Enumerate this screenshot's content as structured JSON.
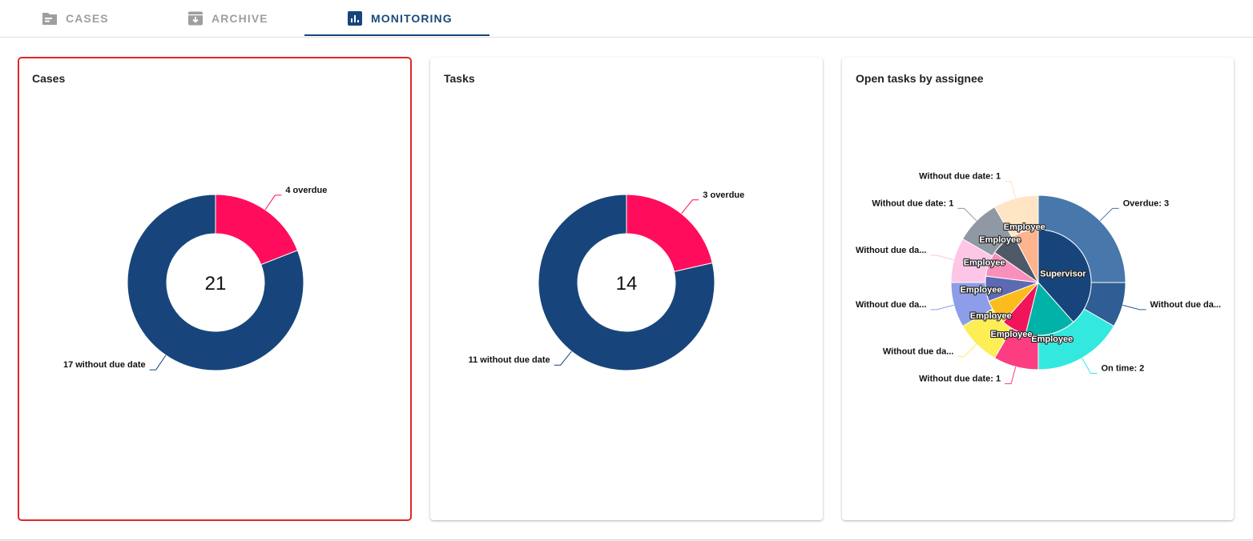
{
  "tabs": [
    {
      "id": "cases",
      "label": "CASES",
      "icon": "folder-icon",
      "active": false
    },
    {
      "id": "archive",
      "label": "ARCHIVE",
      "icon": "archive-icon",
      "active": false
    },
    {
      "id": "monitoring",
      "label": "MONITORING",
      "icon": "bar-chart-icon",
      "active": true
    }
  ],
  "colors": {
    "navy": "#17457b",
    "pink": "#ff0d5c",
    "tab_active": "#1a4a7a",
    "selection": "#e02828"
  },
  "chart_data": [
    {
      "type": "pie",
      "title": "Cases",
      "center_label": "21",
      "slices": [
        {
          "label": "4 overdue",
          "value": 4,
          "color": "#ff0d5c"
        },
        {
          "label": "17 without due date",
          "value": 17,
          "color": "#17457b"
        }
      ]
    },
    {
      "type": "pie",
      "title": "Tasks",
      "center_label": "14",
      "slices": [
        {
          "label": "3 overdue",
          "value": 3,
          "color": "#ff0d5c"
        },
        {
          "label": "11 without due date",
          "value": 11,
          "color": "#17457b"
        }
      ]
    },
    {
      "type": "pie",
      "title": "Open tasks by assignee",
      "inner": [
        {
          "label": "Supervisor",
          "value": 5,
          "color": "#17457b"
        },
        {
          "label": "Employee",
          "value": 2,
          "color": "#00b2a7"
        },
        {
          "label": "Employee",
          "value": 1,
          "color": "#f2145a"
        },
        {
          "label": "Employee",
          "value": 1,
          "color": "#fbbc1c"
        },
        {
          "label": "Employee",
          "value": 1,
          "color": "#5c6ab3"
        },
        {
          "label": "Employee",
          "value": 1,
          "color": "#fa8fbb"
        },
        {
          "label": "Employee",
          "value": 1,
          "color": "#4f5866"
        },
        {
          "label": "Employee",
          "value": 1,
          "color": "#ffb38e"
        }
      ],
      "outer": [
        {
          "label": "Overdue: 3",
          "value": 3,
          "color": "#4878ab"
        },
        {
          "label": "Without due da...",
          "value": 1,
          "color": "#2e5e93"
        },
        {
          "label": "On time: 2",
          "value": 2,
          "color": "#33e8df"
        },
        {
          "label": "Without due date: 1",
          "value": 1,
          "color": "#fd3d82"
        },
        {
          "label": "Without due da...",
          "value": 1,
          "color": "#fdee55"
        },
        {
          "label": "Without due da...",
          "value": 1,
          "color": "#8d9de8"
        },
        {
          "label": "Without due da...",
          "value": 1,
          "color": "#fdc5e6"
        },
        {
          "label": "Without due date: 1",
          "value": 1,
          "color": "#8f98a3"
        },
        {
          "label": "Without due date: 1",
          "value": 1,
          "color": "#ffe5c3"
        }
      ]
    }
  ]
}
